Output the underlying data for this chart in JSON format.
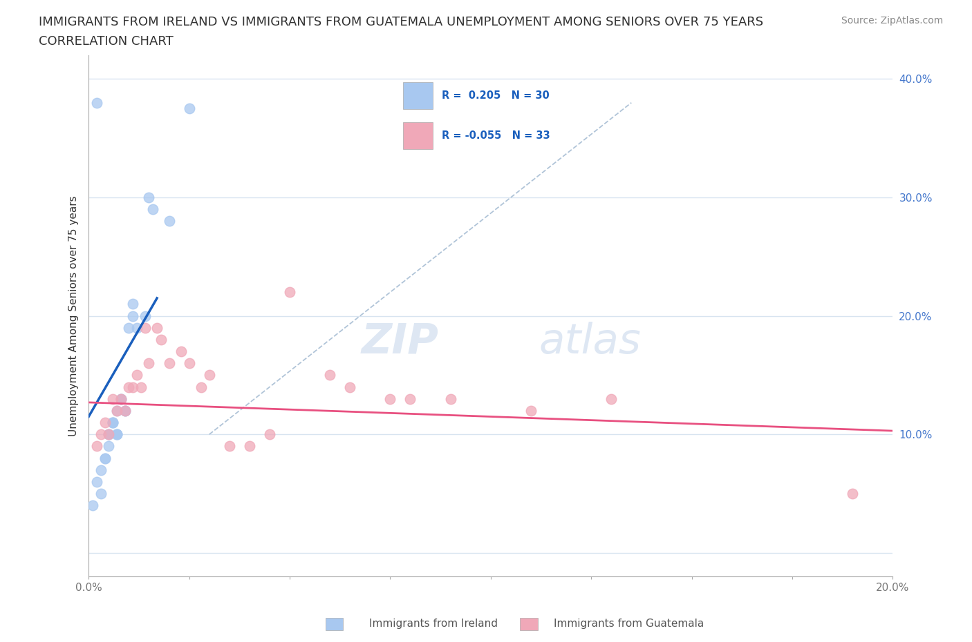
{
  "title_line1": "IMMIGRANTS FROM IRELAND VS IMMIGRANTS FROM GUATEMALA UNEMPLOYMENT AMONG SENIORS OVER 75 YEARS",
  "title_line2": "CORRELATION CHART",
  "source": "Source: ZipAtlas.com",
  "ylabel": "Unemployment Among Seniors over 75 years",
  "legend_bottom": [
    "Immigrants from Ireland",
    "Immigrants from Guatemala"
  ],
  "R_ireland": 0.205,
  "N_ireland": 30,
  "R_guatemala": -0.055,
  "N_guatemala": 33,
  "xlim": [
    0.0,
    0.2
  ],
  "ylim": [
    -0.02,
    0.42
  ],
  "x_ticks": [
    0.0,
    0.025,
    0.05,
    0.075,
    0.1,
    0.125,
    0.15,
    0.175,
    0.2
  ],
  "y_ticks": [
    0.0,
    0.1,
    0.2,
    0.3,
    0.4
  ],
  "ireland_color": "#a8c8f0",
  "guatemala_color": "#f0a8b8",
  "ireland_line_color": "#1a5fbd",
  "guatemala_line_color": "#e85080",
  "diagonal_line_color": "#b0c4d8",
  "grid_color": "#d8e4f0",
  "background_color": "#ffffff",
  "watermark_zip": "ZIP",
  "watermark_atlas": "atlas",
  "tick_color_y": "#4477cc",
  "tick_color_x": "#777777",
  "ireland_x": [
    0.001,
    0.002,
    0.003,
    0.003,
    0.004,
    0.004,
    0.005,
    0.005,
    0.005,
    0.006,
    0.006,
    0.006,
    0.007,
    0.007,
    0.007,
    0.007,
    0.008,
    0.008,
    0.009,
    0.009,
    0.01,
    0.011,
    0.011,
    0.012,
    0.014,
    0.015,
    0.016,
    0.02,
    0.025,
    0.002
  ],
  "ireland_y": [
    0.04,
    0.06,
    0.05,
    0.07,
    0.08,
    0.08,
    0.09,
    0.1,
    0.1,
    0.11,
    0.11,
    0.11,
    0.1,
    0.1,
    0.1,
    0.12,
    0.13,
    0.13,
    0.12,
    0.12,
    0.19,
    0.2,
    0.21,
    0.19,
    0.2,
    0.3,
    0.29,
    0.28,
    0.375,
    0.38
  ],
  "guatemala_x": [
    0.002,
    0.003,
    0.004,
    0.005,
    0.006,
    0.007,
    0.008,
    0.009,
    0.01,
    0.011,
    0.012,
    0.013,
    0.014,
    0.015,
    0.017,
    0.018,
    0.02,
    0.023,
    0.025,
    0.028,
    0.03,
    0.035,
    0.04,
    0.045,
    0.05,
    0.06,
    0.065,
    0.075,
    0.08,
    0.09,
    0.11,
    0.13,
    0.19
  ],
  "guatemala_y": [
    0.09,
    0.1,
    0.11,
    0.1,
    0.13,
    0.12,
    0.13,
    0.12,
    0.14,
    0.14,
    0.15,
    0.14,
    0.19,
    0.16,
    0.19,
    0.18,
    0.16,
    0.17,
    0.16,
    0.14,
    0.15,
    0.09,
    0.09,
    0.1,
    0.22,
    0.15,
    0.14,
    0.13,
    0.13,
    0.13,
    0.12,
    0.13,
    0.05
  ],
  "ireland_line_x": [
    0.0,
    0.017
  ],
  "ireland_line_y": [
    0.115,
    0.215
  ],
  "guatemala_line_x": [
    0.0,
    0.2
  ],
  "guatemala_line_y": [
    0.127,
    0.103
  ],
  "diag_line_x": [
    0.03,
    0.135
  ],
  "diag_line_y": [
    0.1,
    0.38
  ],
  "title_fontsize": 13,
  "axis_label_fontsize": 11,
  "tick_fontsize": 11,
  "legend_fontsize": 11,
  "source_fontsize": 10,
  "marker_size": 110
}
